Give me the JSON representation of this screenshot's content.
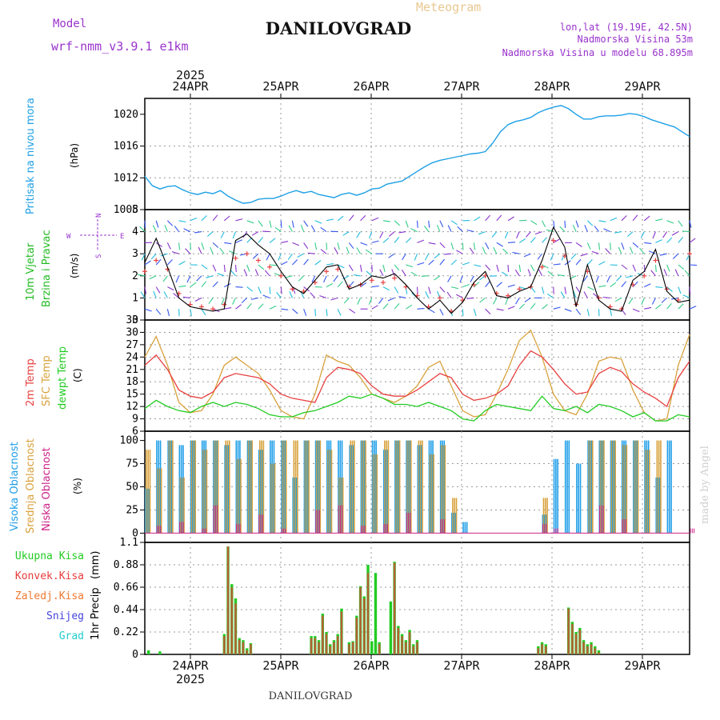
{
  "header": {
    "model_label": "Model",
    "model_name": "wrf-nmm_v3.9.1 e1km",
    "subtitle": "Meteogram",
    "title": "DANILOVGRAD",
    "coords": "lon,lat (19.19E, 42.5N)",
    "elev_station": "Nadmorska Visina 53m",
    "elev_model": "Nadmorska Visina u modelu 68.895m",
    "footer": "DANILOVGRAD",
    "credit": "made by Angel"
  },
  "colors": {
    "pressure": "#1ea0e6",
    "wind_label": "#22bb22",
    "temp2m": "#e84040",
    "sfc": "#d8a23c",
    "dewpt": "#22cc22",
    "high_cloud": "#1e9ee8",
    "mid_cloud": "#d8a23c",
    "low_cloud": "#cc2288",
    "total_precip": "#22cc22",
    "conv_precip": "#e83c3c",
    "frozen_precip": "#f07830",
    "snow": "#4444dd",
    "hail": "#22cccc",
    "purple": "#9933cc"
  },
  "chart_data": [
    {
      "type": "line",
      "ylabel": "Pritisak na nivou mora",
      "unit": "(hPa)",
      "ylim": [
        1008,
        1022
      ],
      "yticks": [
        1008,
        1012,
        1016,
        1020
      ],
      "x_top_year": "2025",
      "dates": [
        "24APR",
        "25APR",
        "26APR",
        "27APR",
        "28APR",
        "29APR"
      ],
      "x": [
        0,
        2,
        4,
        6,
        8,
        10,
        12,
        14,
        16,
        18,
        20,
        22,
        24,
        26,
        28,
        30,
        32,
        34,
        36,
        38,
        40,
        42,
        44,
        46,
        48,
        50,
        52,
        54,
        56,
        58,
        60,
        62,
        64,
        66,
        68,
        70,
        72,
        74,
        76,
        78,
        80,
        82,
        84,
        86,
        88,
        90,
        92,
        94,
        96,
        98,
        100,
        102,
        104,
        106,
        108,
        110,
        112,
        114,
        116,
        118,
        120,
        122,
        124,
        126,
        128,
        130,
        132,
        134,
        136,
        138,
        140,
        142,
        144
      ],
      "series": [
        {
          "name": "",
          "values": [
            1012.2,
            1011.0,
            1010.6,
            1010.9,
            1011.0,
            1010.5,
            1010.1,
            1009.9,
            1010.2,
            1010.0,
            1010.4,
            1009.7,
            1009.2,
            1008.8,
            1008.9,
            1009.3,
            1009.4,
            1009.4,
            1009.7,
            1010.1,
            1010.4,
            1010.1,
            1010.3,
            1009.9,
            1009.7,
            1009.5,
            1009.9,
            1010.1,
            1009.8,
            1010.1,
            1010.6,
            1010.7,
            1011.2,
            1011.4,
            1011.6,
            1012.2,
            1012.8,
            1013.4,
            1013.9,
            1014.2,
            1014.4,
            1014.6,
            1014.8,
            1015.0,
            1015.1,
            1015.3,
            1016.4,
            1017.8,
            1018.7,
            1019.1,
            1019.3,
            1019.6,
            1020.2,
            1020.6,
            1020.9,
            1021.1,
            1020.7,
            1020.0,
            1019.4,
            1019.4,
            1019.7,
            1019.8,
            1019.8,
            1019.9,
            1020.1,
            1020.0,
            1019.7,
            1019.3,
            1019.0,
            1018.7,
            1018.4,
            1017.8,
            1017.2
          ]
        }
      ]
    },
    {
      "type": "line",
      "ylabel": "10m Vjetar",
      "ylabel2": "Brzina i Pravac",
      "unit": "(m/s)",
      "ylim": [
        0,
        5
      ],
      "yticks": [
        0,
        1,
        2,
        3,
        4,
        5
      ],
      "compass": {
        "n": "N",
        "s": "S",
        "e": "E",
        "w": "W"
      },
      "x": [
        0,
        3,
        6,
        9,
        12,
        15,
        18,
        21,
        24,
        27,
        30,
        33,
        36,
        39,
        42,
        45,
        48,
        51,
        54,
        57,
        60,
        63,
        66,
        69,
        72,
        75,
        78,
        81,
        84,
        87,
        90,
        93,
        96,
        99,
        102,
        105,
        108,
        111,
        114,
        117,
        120,
        123,
        126,
        129,
        132,
        135,
        138,
        141,
        144
      ],
      "series": [
        {
          "name": "",
          "values": [
            2.6,
            3.7,
            2.4,
            1.0,
            0.6,
            0.5,
            0.4,
            0.5,
            3.6,
            3.9,
            3.4,
            3.0,
            2.2,
            1.5,
            1.2,
            1.8,
            2.4,
            2.5,
            1.4,
            1.6,
            2.0,
            1.9,
            2.1,
            1.6,
            1.0,
            0.5,
            0.9,
            0.3,
            0.8,
            1.7,
            2.2,
            1.1,
            1.0,
            1.3,
            1.5,
            2.7,
            4.2,
            3.3,
            0.6,
            2.5,
            0.9,
            0.5,
            0.4,
            1.8,
            2.2,
            3.2,
            1.3,
            0.8,
            0.9
          ]
        },
        {
          "name": "",
          "values": [
            2.2,
            2.7,
            2.3,
            1.2,
            0.7,
            0.6,
            0.5,
            0.7,
            2.8,
            3.0,
            2.7,
            2.4,
            2.0,
            1.4,
            1.3,
            1.7,
            2.2,
            2.3,
            1.5,
            1.6,
            1.8,
            1.7,
            1.9,
            1.5,
            1.1,
            0.6,
            1.0,
            0.4,
            0.9,
            1.6,
            2.0,
            1.2,
            1.1,
            1.4,
            1.5,
            2.4,
            3.6,
            2.9,
            0.7,
            2.2,
            1.0,
            0.6,
            0.5,
            1.6,
            2.0,
            2.7,
            1.4,
            0.9,
            3.0
          ]
        }
      ]
    },
    {
      "type": "line",
      "ylabel": "2m Temp",
      "ylabel2": "SFC Temp",
      "ylabel3": "dewpt Temp",
      "unit": "(C)",
      "ylim": [
        6,
        33
      ],
      "yticks": [
        6,
        9,
        12,
        15,
        18,
        21,
        24,
        27,
        30,
        33
      ],
      "x": [
        0,
        3,
        6,
        9,
        12,
        15,
        18,
        21,
        24,
        27,
        30,
        33,
        36,
        39,
        42,
        45,
        48,
        51,
        54,
        57,
        60,
        63,
        66,
        69,
        72,
        75,
        78,
        81,
        84,
        87,
        90,
        93,
        96,
        99,
        102,
        105,
        108,
        111,
        114,
        117,
        120,
        123,
        126,
        129,
        132,
        135,
        138,
        141,
        144
      ],
      "series": [
        {
          "name": "",
          "values": [
            22.0,
            24.5,
            21.0,
            16.0,
            14.5,
            14.0,
            15.5,
            19.0,
            20.0,
            19.5,
            19.0,
            17.5,
            15.0,
            14.0,
            13.5,
            13.0,
            19.0,
            21.5,
            21.0,
            20.0,
            17.0,
            15.0,
            14.5,
            14.5,
            16.0,
            18.0,
            20.0,
            19.0,
            15.0,
            13.5,
            14.0,
            15.0,
            17.0,
            22.0,
            25.5,
            24.0,
            21.0,
            17.5,
            15.0,
            15.5,
            20.0,
            21.5,
            20.5,
            17.5,
            15.5,
            14.0,
            12.0,
            19.0,
            23.0
          ]
        },
        {
          "name": "",
          "values": [
            24.0,
            29.0,
            22.0,
            13.0,
            10.5,
            11.0,
            15.0,
            22.0,
            24.0,
            22.0,
            20.0,
            16.0,
            11.0,
            9.5,
            9.0,
            15.0,
            24.5,
            23.0,
            22.0,
            19.0,
            15.0,
            14.0,
            13.0,
            14.5,
            17.0,
            21.5,
            23.0,
            17.0,
            11.0,
            9.5,
            10.0,
            15.0,
            21.0,
            28.0,
            30.5,
            24.0,
            15.0,
            11.0,
            10.0,
            15.0,
            23.0,
            24.0,
            23.5,
            16.0,
            10.5,
            8.5,
            9.0,
            22.0,
            29.5
          ]
        },
        {
          "name": "",
          "values": [
            11.5,
            13.5,
            12.0,
            11.0,
            10.5,
            12.0,
            13.0,
            12.0,
            13.0,
            12.5,
            11.5,
            10.0,
            9.5,
            9.5,
            10.5,
            11.0,
            12.0,
            13.0,
            14.5,
            14.0,
            15.0,
            14.0,
            12.5,
            12.5,
            12.0,
            13.0,
            12.0,
            11.0,
            9.0,
            8.5,
            11.0,
            12.5,
            12.0,
            11.5,
            11.0,
            14.5,
            11.5,
            11.0,
            12.0,
            10.5,
            12.5,
            12.0,
            11.0,
            9.5,
            10.5,
            8.5,
            8.5,
            10.0,
            9.5
          ]
        }
      ]
    },
    {
      "type": "bar",
      "ylabel": "Visoka Oblacnost",
      "ylabel2": "Srednja Oblacnost",
      "ylabel3": "Niska Oblacnost",
      "unit": "(%)",
      "ylim": [
        0,
        100
      ],
      "yticks": [
        0,
        25,
        50,
        75,
        100
      ],
      "x": [
        0,
        3,
        6,
        9,
        12,
        15,
        18,
        21,
        24,
        27,
        30,
        33,
        36,
        39,
        42,
        45,
        48,
        51,
        54,
        57,
        60,
        63,
        66,
        69,
        72,
        75,
        78,
        81,
        84,
        87,
        90,
        93,
        96,
        99,
        102,
        105,
        108,
        111,
        114,
        117,
        120,
        123,
        126,
        129,
        132,
        135,
        138,
        141,
        144
      ],
      "series": [
        {
          "name": "",
          "values": [
            48,
            100,
            100,
            95,
            100,
            100,
            100,
            95,
            100,
            100,
            90,
            100,
            100,
            60,
            100,
            100,
            100,
            100,
            95,
            100,
            100,
            90,
            100,
            100,
            95,
            100,
            100,
            22,
            12,
            0,
            0,
            0,
            0,
            0,
            0,
            20,
            80,
            100,
            75,
            100,
            100,
            100,
            100,
            100,
            100,
            60,
            100,
            0,
            0
          ]
        },
        {
          "name": "",
          "values": [
            90,
            70,
            100,
            60,
            100,
            90,
            100,
            100,
            80,
            100,
            100,
            75,
            100,
            100,
            100,
            100,
            90,
            60,
            100,
            100,
            85,
            100,
            100,
            100,
            100,
            85,
            95,
            38,
            0,
            0,
            0,
            0,
            0,
            0,
            0,
            38,
            0,
            0,
            0,
            100,
            100,
            100,
            95,
            100,
            90,
            100,
            0,
            0,
            0
          ]
        },
        {
          "name": "",
          "values": [
            0,
            8,
            0,
            12,
            0,
            5,
            30,
            0,
            10,
            0,
            20,
            0,
            5,
            0,
            0,
            25,
            0,
            30,
            0,
            8,
            0,
            10,
            0,
            22,
            0,
            0,
            15,
            0,
            0,
            0,
            0,
            0,
            0,
            0,
            0,
            10,
            5,
            0,
            0,
            0,
            30,
            0,
            15,
            0,
            0,
            0,
            0,
            0,
            5
          ]
        }
      ]
    },
    {
      "type": "bar",
      "ylabel": "1hr Precip",
      "unit": "(mm)",
      "ylim": [
        0,
        1.1
      ],
      "yticks": [
        0,
        0.22,
        0.44,
        0.66,
        0.88,
        1.1
      ],
      "x_bottom_year": "2025",
      "legend": [
        "Ukupna Kisa",
        "Konvek.Kisa",
        "Zaledj.Kisa",
        "Snijeg",
        "Grad"
      ],
      "x": [
        1,
        4,
        21,
        22,
        23,
        24,
        25,
        26,
        27,
        28,
        44,
        45,
        46,
        47,
        48,
        49,
        50,
        51,
        52,
        54,
        55,
        56,
        57,
        58,
        59,
        60,
        61,
        62,
        65,
        66,
        67,
        68,
        69,
        70,
        71,
        72,
        104,
        105,
        106,
        112,
        113,
        114,
        115,
        116,
        117,
        118,
        119,
        120
      ],
      "series": [
        {
          "name": "",
          "values": [
            0.04,
            0.03,
            0.2,
            1.06,
            0.69,
            0.55,
            0.16,
            0.14,
            0.06,
            0.11,
            0.18,
            0.18,
            0.14,
            0.4,
            0.22,
            0.1,
            0.14,
            0.2,
            0.45,
            0.12,
            0.13,
            0.38,
            0.67,
            0.57,
            0.88,
            0.13,
            0.8,
            0.12,
            0.52,
            0.91,
            0.28,
            0.2,
            0.14,
            0.24,
            0.1,
            0.14,
            0.08,
            0.12,
            0.1,
            0.46,
            0.32,
            0.22,
            0.26,
            0.14,
            0.1,
            0.12,
            0.08,
            0.04
          ]
        },
        {
          "name": "",
          "values": [
            0,
            0,
            0.18,
            1.06,
            0.66,
            0.5,
            0.14,
            0.12,
            0.04,
            0.1,
            0.16,
            0.16,
            0.12,
            0.38,
            0.2,
            0.08,
            0.12,
            0.18,
            0.42,
            0.1,
            0.12,
            0.36,
            0.66,
            0.55,
            0.8,
            0.0,
            0.0,
            0.1,
            0.0,
            0.9,
            0.26,
            0.18,
            0.12,
            0.22,
            0.08,
            0.12,
            0.06,
            0.1,
            0.08,
            0.45,
            0.3,
            0.2,
            0.24,
            0.12,
            0.08,
            0.1,
            0.06,
            0.02
          ]
        }
      ]
    }
  ]
}
